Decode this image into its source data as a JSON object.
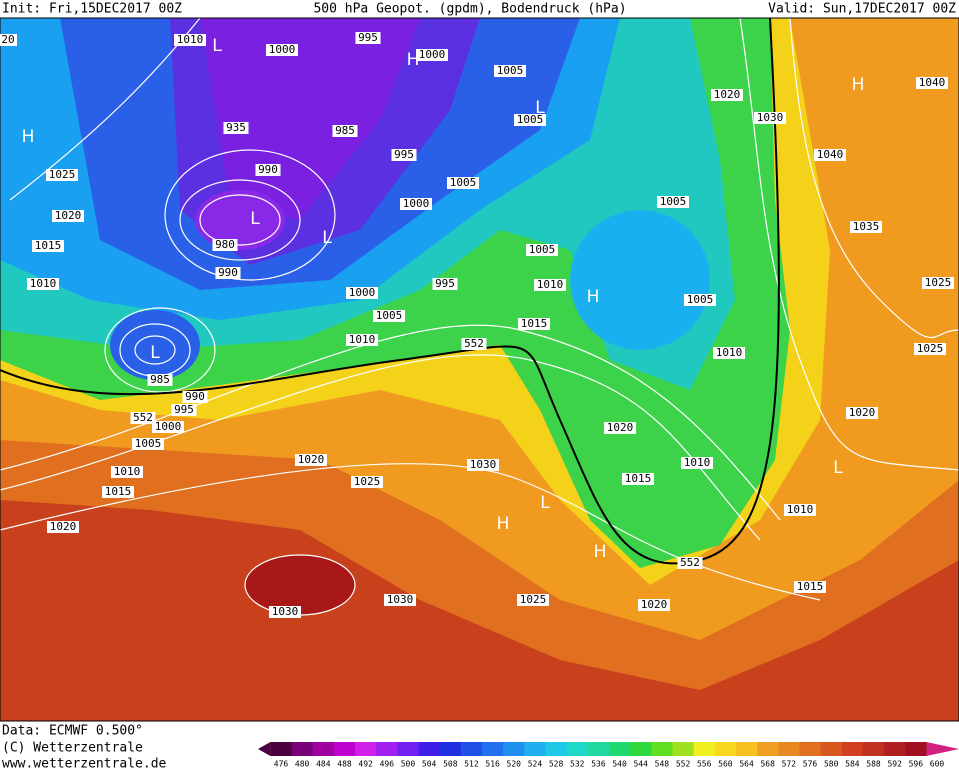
{
  "header": {
    "init": "Init: Fri,15DEC2017 00Z",
    "title": "500 hPa Geopot. (gpdm), Bodendruck (hPa)",
    "valid": "Valid: Sun,17DEC2017 00Z"
  },
  "map": {
    "labels": [
      "20",
      "1010",
      "L",
      "1000",
      "995",
      "1000",
      "H",
      "1005",
      "L",
      "1005",
      "1020",
      "1030",
      "H",
      "1040",
      "H",
      "935",
      "985",
      "995",
      "990",
      "1005",
      "1040",
      "1025",
      "1020",
      "L",
      "1000",
      "L",
      "1005",
      "1035",
      "980",
      "1015",
      "1005",
      "990",
      "995",
      "1010",
      "1010",
      "H",
      "1025",
      "1000",
      "1005",
      "1005",
      "1015",
      "1010",
      "552",
      "L",
      "1010",
      "1025",
      "985",
      "990",
      "995",
      "552",
      "1000",
      "1020",
      "1020",
      "1005",
      "1020",
      "1010",
      "1030",
      "L",
      "1010",
      "1025",
      "1015",
      "1015",
      "L",
      "H",
      "1010",
      "1020",
      "H",
      "552",
      "1015",
      "1030",
      "1030",
      "1025",
      "1020"
    ]
  },
  "footer": {
    "data": "Data: ECMWF  0.500°",
    "copyright": "(C) Wetterzentrale",
    "url": "www.wetterzentrale.de"
  },
  "scale": {
    "ticks": [
      476,
      480,
      484,
      488,
      492,
      496,
      500,
      504,
      508,
      512,
      516,
      520,
      524,
      528,
      532,
      536,
      540,
      544,
      548,
      552,
      556,
      560,
      564,
      568,
      572,
      576,
      580,
      584,
      588,
      592,
      596,
      600
    ],
    "colors": [
      "#4a0040",
      "#7a007a",
      "#a000a0",
      "#c000d0",
      "#d020e8",
      "#a020f0",
      "#7020f0",
      "#4020e8",
      "#2030e0",
      "#2050e8",
      "#2070f0",
      "#2090f0",
      "#20b0f0",
      "#20c8e8",
      "#20d8c8",
      "#20d8a0",
      "#20d870",
      "#30d840",
      "#60e020",
      "#a0e020",
      "#f0f020",
      "#f8d820",
      "#f8c020",
      "#f0a020",
      "#e88820",
      "#e07020",
      "#d85820",
      "#d04020",
      "#c03020",
      "#b02020",
      "#a01020",
      "#d02080"
    ]
  }
}
